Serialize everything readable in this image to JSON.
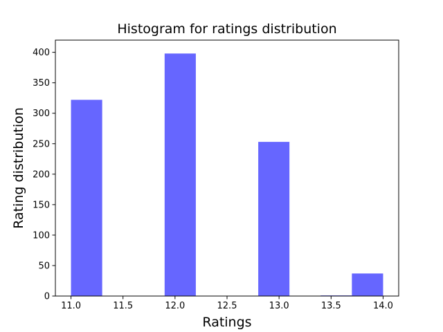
{
  "chart_data": {
    "type": "bar",
    "title": "Histogram for ratings distribution",
    "xlabel": "Ratings",
    "ylabel": "Rating distribution",
    "xlim": [
      10.85,
      14.15
    ],
    "ylim": [
      0,
      420
    ],
    "x_ticks": [
      11.0,
      11.5,
      12.0,
      12.5,
      13.0,
      13.5,
      14.0
    ],
    "x_tick_labels": [
      "11.0",
      "11.5",
      "12.0",
      "12.5",
      "13.0",
      "13.5",
      "14.0"
    ],
    "y_ticks": [
      0,
      50,
      100,
      150,
      200,
      250,
      300,
      350,
      400
    ],
    "y_tick_labels": [
      "0",
      "50",
      "100",
      "150",
      "200",
      "250",
      "300",
      "350",
      "400"
    ],
    "bin_edges": [
      11.0,
      11.3,
      11.6,
      11.9,
      12.2,
      12.5,
      12.8,
      13.1,
      13.4,
      13.7,
      14.0
    ],
    "counts": [
      322,
      0,
      0,
      398,
      0,
      0,
      253,
      0,
      1,
      37
    ],
    "bar_color": "#6666ff",
    "grid": false,
    "legend": "none"
  }
}
